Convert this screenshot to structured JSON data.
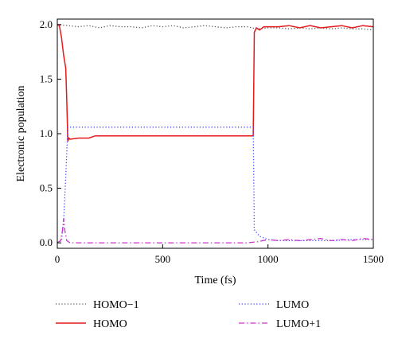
{
  "chart_data": {
    "type": "line",
    "xlabel": "Time (fs)",
    "ylabel": "Electronic population",
    "xlim": [
      0,
      1500
    ],
    "ylim": [
      -0.05,
      2.05
    ],
    "xticks": [
      0,
      500,
      1000,
      1500
    ],
    "yticks": [
      0.0,
      0.5,
      1.0,
      1.5,
      2.0
    ],
    "xtick_labels": [
      "0",
      "500",
      "1000",
      "1500"
    ],
    "ytick_labels": [
      "0.0",
      "0.5",
      "1.0",
      "1.5",
      "2.0"
    ],
    "grid": false,
    "legend_position": "bottom",
    "series": [
      {
        "name": "HOMO−1",
        "color": "#555555",
        "dash": "dotted",
        "x": [
          0,
          50,
          100,
          150,
          200,
          250,
          300,
          350,
          400,
          450,
          500,
          550,
          600,
          650,
          700,
          750,
          800,
          850,
          900,
          950,
          1000,
          1050,
          1100,
          1150,
          1200,
          1250,
          1300,
          1350,
          1400,
          1450,
          1500
        ],
        "values": [
          2.0,
          1.99,
          1.98,
          1.99,
          1.97,
          1.99,
          1.98,
          1.98,
          1.97,
          1.99,
          1.98,
          1.99,
          1.97,
          1.98,
          1.99,
          1.98,
          1.97,
          1.98,
          1.98,
          1.96,
          1.97,
          1.97,
          1.96,
          1.97,
          1.96,
          1.97,
          1.96,
          1.97,
          1.96,
          1.96,
          1.95
        ]
      },
      {
        "name": "HOMO",
        "color": "#e41a1c",
        "dash": "solid",
        "x": [
          0,
          10,
          20,
          30,
          40,
          45,
          50,
          55,
          60,
          100,
          150,
          180,
          200,
          250,
          300,
          400,
          500,
          600,
          700,
          800,
          900,
          930,
          935,
          945,
          960,
          980,
          1000,
          1050,
          1100,
          1150,
          1200,
          1250,
          1300,
          1350,
          1400,
          1450,
          1500
        ],
        "values": [
          2.0,
          1.99,
          1.88,
          1.72,
          1.6,
          1.3,
          0.93,
          0.96,
          0.95,
          0.96,
          0.96,
          0.98,
          0.98,
          0.98,
          0.98,
          0.98,
          0.98,
          0.98,
          0.98,
          0.98,
          0.98,
          0.98,
          1.93,
          1.97,
          1.95,
          1.98,
          1.98,
          1.98,
          1.99,
          1.97,
          1.99,
          1.97,
          1.98,
          1.99,
          1.97,
          1.99,
          1.98
        ]
      },
      {
        "name": "LUMO",
        "color": "#4040ff",
        "dash": "dotted",
        "x": [
          0,
          20,
          30,
          40,
          50,
          60,
          100,
          200,
          300,
          400,
          500,
          600,
          700,
          800,
          900,
          930,
          935,
          960,
          1000,
          1050,
          1100,
          1200,
          1300,
          1400,
          1500
        ],
        "values": [
          0.0,
          0.02,
          0.2,
          0.6,
          1.06,
          1.06,
          1.06,
          1.06,
          1.06,
          1.06,
          1.06,
          1.06,
          1.06,
          1.06,
          1.06,
          1.06,
          0.12,
          0.06,
          0.03,
          0.02,
          0.02,
          0.02,
          0.02,
          0.03,
          0.03
        ]
      },
      {
        "name": "LUMO+1",
        "color": "#cc33cc",
        "dash": "dashdot",
        "x": [
          0,
          15,
          25,
          30,
          35,
          45,
          60,
          100,
          200,
          300,
          400,
          500,
          600,
          700,
          800,
          900,
          950,
          1000,
          1050,
          1100,
          1150,
          1200,
          1250,
          1300,
          1350,
          1400,
          1450,
          1500
        ],
        "values": [
          0.0,
          0.02,
          0.12,
          0.22,
          0.12,
          0.02,
          0.0,
          0.0,
          0.0,
          0.0,
          0.0,
          0.0,
          0.0,
          0.0,
          0.0,
          0.0,
          0.01,
          0.03,
          0.02,
          0.03,
          0.02,
          0.03,
          0.04,
          0.02,
          0.03,
          0.02,
          0.04,
          0.03
        ]
      }
    ]
  }
}
